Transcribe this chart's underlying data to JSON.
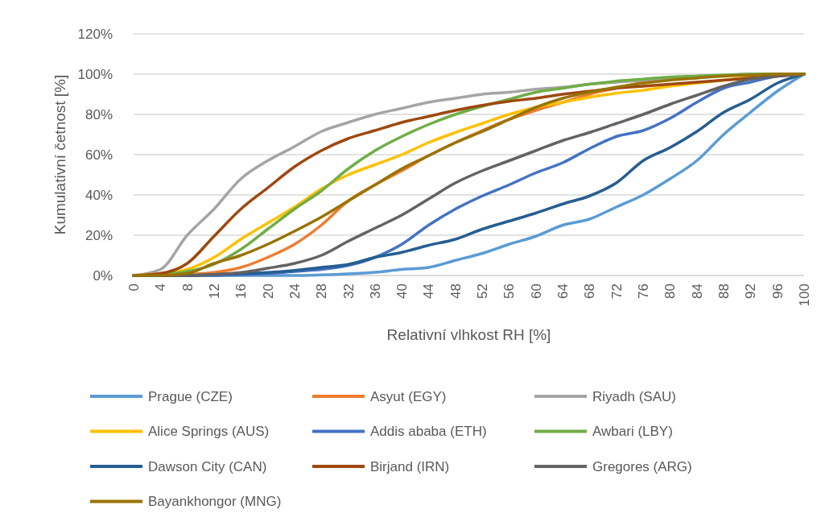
{
  "chart_data": {
    "type": "line",
    "xlabel": "Relativní vlhkost RH [%]",
    "ylabel": "Kumulativní četnost [%]",
    "x": [
      0,
      4,
      8,
      12,
      16,
      20,
      24,
      28,
      32,
      36,
      40,
      44,
      48,
      52,
      56,
      60,
      64,
      68,
      72,
      76,
      80,
      84,
      88,
      92,
      96,
      100
    ],
    "xlim": [
      0,
      100
    ],
    "xticks": [
      0,
      4,
      8,
      12,
      16,
      20,
      24,
      28,
      32,
      36,
      40,
      44,
      48,
      52,
      56,
      60,
      64,
      68,
      72,
      76,
      80,
      84,
      88,
      92,
      96,
      100
    ],
    "ylim": [
      0,
      120
    ],
    "yticks": [
      {
        "value": 0,
        "label": "0%"
      },
      {
        "value": 20,
        "label": "20%"
      },
      {
        "value": 40,
        "label": "40%"
      },
      {
        "value": 60,
        "label": "60%"
      },
      {
        "value": 80,
        "label": "80%"
      },
      {
        "value": 100,
        "label": "100%"
      },
      {
        "value": 120,
        "label": "120%"
      }
    ],
    "grid": "y",
    "legend": "bottom",
    "marker": "none",
    "line_style": "solid",
    "series": [
      {
        "name": "Prague (CZE)",
        "color": "#5b9bd5",
        "values": [
          0,
          0,
          0,
          0,
          0,
          0,
          0,
          0.3,
          0.8,
          1.6,
          3,
          4,
          7.5,
          11,
          15.5,
          19.5,
          25,
          28,
          34,
          40,
          48,
          57,
          70,
          81,
          91.5,
          100
        ]
      },
      {
        "name": "Asyut (EGY)",
        "color": "#ed7d31",
        "values": [
          0,
          0,
          0.5,
          1.5,
          4,
          9,
          15.5,
          25,
          37,
          45,
          52,
          59.5,
          66,
          72,
          77.5,
          82,
          86,
          90,
          93,
          96,
          98,
          null,
          null,
          null,
          null,
          null
        ]
      },
      {
        "name": "Riyadh (SAU)",
        "color": "#a5a5a5",
        "values": [
          0,
          3,
          20,
          33,
          48,
          57,
          64,
          71.5,
          76,
          80,
          83,
          86,
          88,
          90,
          91,
          92.5,
          93.5,
          95,
          96,
          97,
          98,
          99,
          99.5,
          100,
          100,
          100
        ]
      },
      {
        "name": "Alice Springs (AUS)",
        "color": "#ffc000",
        "values": [
          0,
          1,
          3,
          9,
          18,
          26,
          34,
          43,
          50,
          55,
          60,
          66,
          71,
          75.5,
          80,
          83.5,
          86,
          88.5,
          90.5,
          92,
          94,
          95.5,
          97,
          98.5,
          99.5,
          100
        ]
      },
      {
        "name": "Addis ababa (ETH)",
        "color": "#4472c4",
        "values": [
          0,
          0,
          0,
          0,
          0.5,
          1,
          2,
          3,
          5,
          9,
          15.5,
          25,
          33,
          39.5,
          45,
          51,
          56,
          63,
          69,
          72,
          78,
          86,
          93,
          96,
          99,
          100
        ]
      },
      {
        "name": "Awbari (LBY)",
        "color": "#70ad47",
        "values": [
          0,
          0.5,
          2,
          5.6,
          13,
          23,
          33,
          42,
          53,
          62,
          69,
          75,
          80,
          84,
          87.5,
          91,
          93,
          95,
          96.5,
          97.5,
          98.5,
          99,
          99.5,
          100,
          100,
          100
        ]
      },
      {
        "name": "Dawson City (CAN)",
        "color": "#255e91",
        "values": [
          0,
          0,
          0,
          0.5,
          1,
          1.5,
          2.5,
          4,
          5.5,
          9,
          11.5,
          15,
          18,
          23,
          27,
          31,
          35.5,
          39.5,
          46,
          57,
          63.5,
          71.5,
          81,
          87.5,
          95.5,
          100
        ]
      },
      {
        "name": "Birjand (IRN)",
        "color": "#9e480e",
        "values": [
          0,
          1,
          6,
          19.5,
          33,
          43.5,
          54,
          62,
          68,
          72,
          76,
          79,
          82,
          84.5,
          86.5,
          88,
          90,
          91.5,
          93,
          94,
          95,
          96,
          97,
          98,
          99,
          100
        ]
      },
      {
        "name": "Gregores (ARG)",
        "color": "#636363",
        "values": [
          0,
          0,
          0,
          0.5,
          1.5,
          3.6,
          6,
          10,
          17,
          23.5,
          30,
          38,
          46,
          52,
          57,
          62,
          67,
          71,
          75.5,
          80,
          85,
          89.5,
          94,
          97.5,
          99,
          100
        ]
      },
      {
        "name": "Bayankhongor (MNG)",
        "color": "#997300",
        "values": [
          0,
          0,
          1,
          6,
          10,
          15.5,
          22,
          29,
          37,
          45,
          53,
          59.5,
          66,
          71.5,
          77.5,
          83.5,
          88,
          91,
          93.5,
          95.5,
          97,
          98,
          99,
          99.5,
          100,
          100
        ]
      }
    ]
  }
}
